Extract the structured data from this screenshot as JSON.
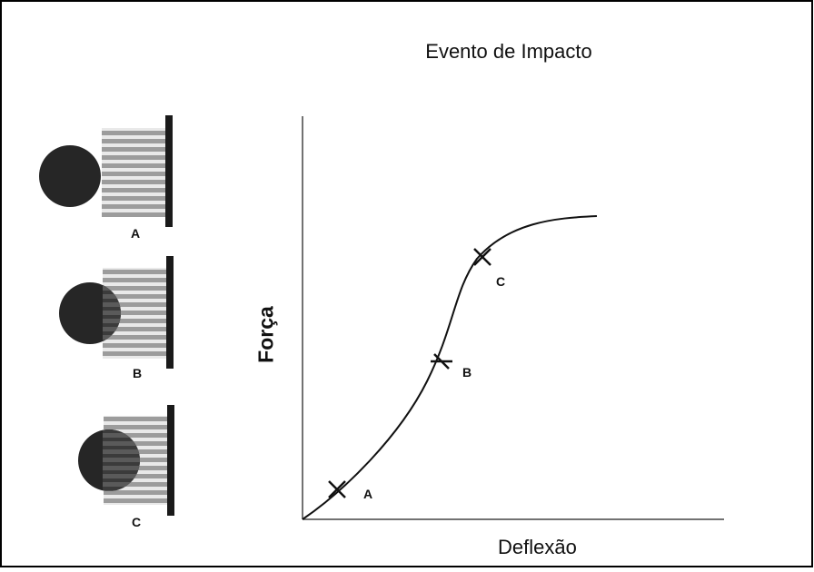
{
  "title": "Evento de Impacto",
  "y_axis_label": "Força",
  "x_axis_label": "Deflexão",
  "curve_points": [
    {
      "label": "A"
    },
    {
      "label": "B"
    },
    {
      "label": "C"
    }
  ],
  "panels": [
    {
      "label": "A",
      "state": "contact"
    },
    {
      "label": "B",
      "state": "partial-penetration"
    },
    {
      "label": "C",
      "state": "deep-penetration"
    }
  ],
  "colors": {
    "ball": "#262626",
    "bars": "#9a9a9a",
    "wall": "#1a1a1a",
    "line": "#111111"
  }
}
